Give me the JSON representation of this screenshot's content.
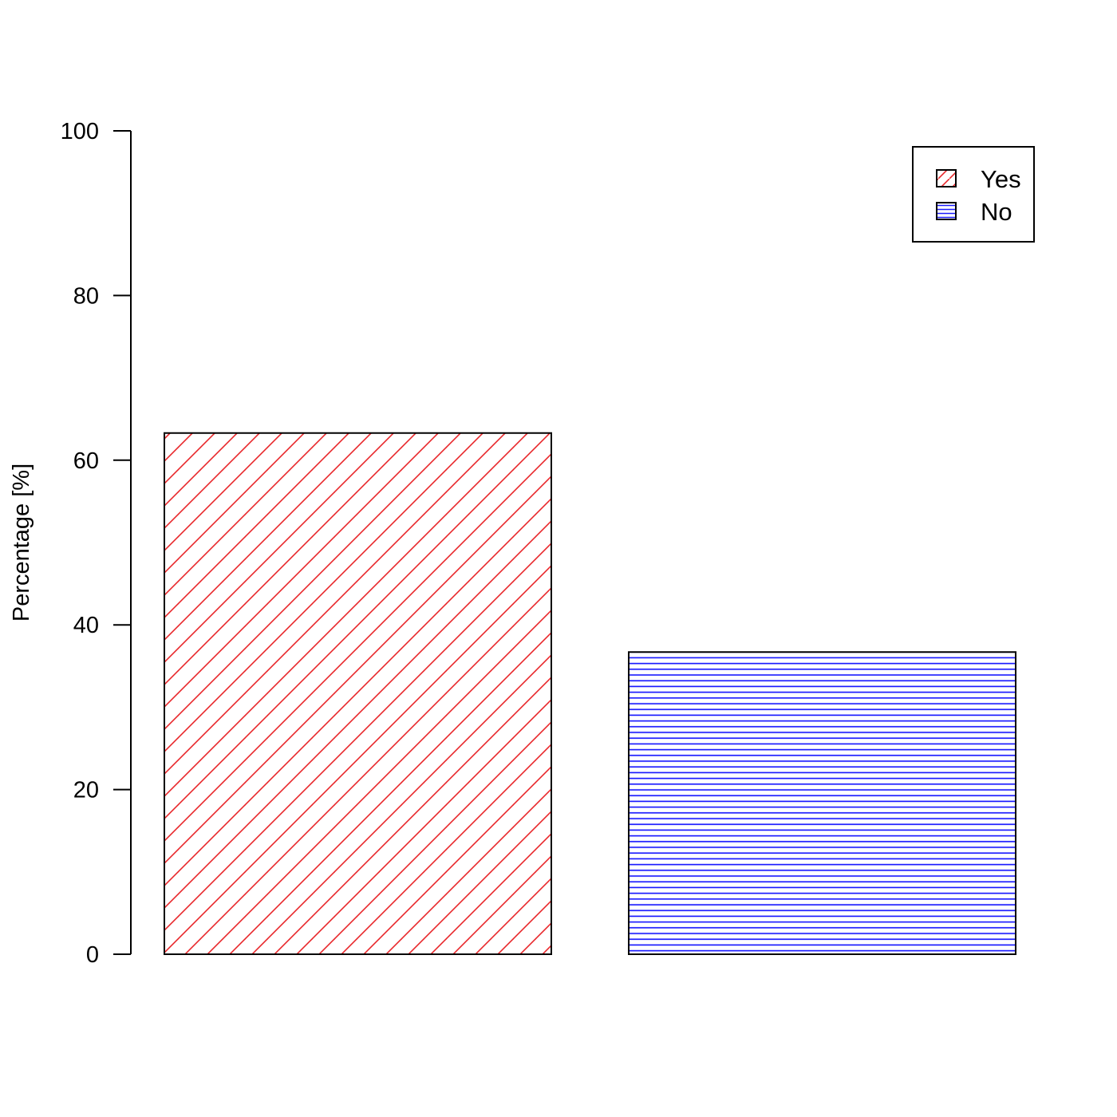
{
  "chart_data": {
    "type": "bar",
    "categories": [
      "Yes",
      "No"
    ],
    "values": [
      63.3,
      36.7
    ],
    "title": "",
    "xlabel": "",
    "ylabel": "Percentage [%]",
    "ylim": [
      0,
      100
    ],
    "yticks": [
      0,
      20,
      40,
      60,
      80,
      100
    ],
    "grid": false,
    "legend": {
      "placement": "top-right",
      "entries": [
        {
          "label": "Yes",
          "color": "#e8262a",
          "pattern": "diagonal-lines"
        },
        {
          "label": "No",
          "color": "#1a1aff",
          "pattern": "horizontal-lines"
        }
      ]
    },
    "colors": [
      "#e8262a",
      "#1a1aff"
    ]
  }
}
